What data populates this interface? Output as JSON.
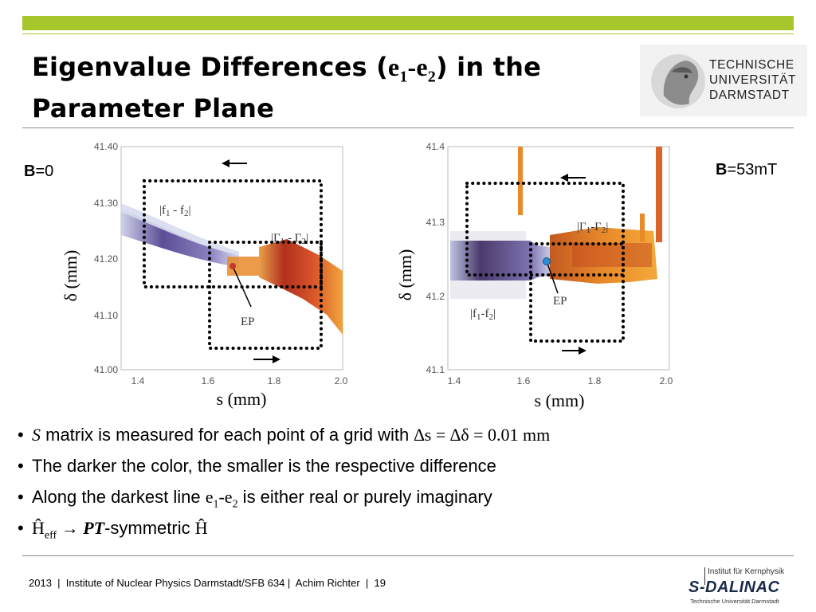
{
  "title": {
    "line1_before": "Eigenvalue Differences (",
    "e1": "e",
    "sub1": "1",
    "dash": "-",
    "e2": "e",
    "sub2": "2",
    "line1_after": ") in the",
    "line2": "Parameter Plane"
  },
  "logo": {
    "line1": "TECHNISCHE",
    "line2": "UNIVERSITÄT",
    "line3": "DARMSTADT"
  },
  "left_plot": {
    "field_bold": "B",
    "field_value": "=0",
    "y_ticks": [
      "41.40",
      "41.30",
      "41.20",
      "41.10",
      "41.00"
    ],
    "x_ticks": [
      "1.4",
      "1.6",
      "1.8",
      "2.0"
    ],
    "xlabel": "s (mm)",
    "ylabel": "δ (mm)",
    "label_f": "|f",
    "label_f_sub1": "1",
    "label_f_mid": " - f",
    "label_f_sub2": "2",
    "label_f_end": "|",
    "label_gamma": "|Γ",
    "label_gamma_sub1": "1",
    "label_gamma_mid": " - Γ",
    "label_gamma_sub2": "2",
    "label_gamma_end": "|",
    "ep": "EP"
  },
  "right_plot": {
    "field_bold": "B",
    "field_value": "=53mT",
    "y_ticks": [
      "41.4",
      "41.3",
      "41.2",
      "41.1"
    ],
    "x_ticks": [
      "1.4",
      "1.6",
      "1.8",
      "2.0"
    ],
    "xlabel": "s (mm)",
    "ylabel": "δ (mm)",
    "label_f": "|f",
    "label_f_sub1": "1",
    "label_f_mid": "-f",
    "label_f_sub2": "2",
    "label_f_end": "|",
    "label_gamma": "|Γ",
    "label_gamma_sub1": "1",
    "label_gamma_mid": "-Γ",
    "label_gamma_sub2": "2",
    "label_gamma_end": "|",
    "ep": "EP"
  },
  "bullets": {
    "b1_s": "S",
    "b1_text": " matrix is measured for each point of a grid with ",
    "b1_math": "∆s = ∆δ = 0.01 mm",
    "b2": "The darker the color, the smaller is the respective difference",
    "b3_before": "Along the darkest line ",
    "b3_e1": "e",
    "b3_sub1": "1",
    "b3_dash": "-e",
    "b3_sub2": "2",
    "b3_after": " is either real or purely imaginary",
    "b4_h": "Ĥ",
    "b4_sub": "eff",
    "b4_arrow": " → ",
    "b4_pt": "PT",
    "b4_text": "-symmetric ",
    "b4_h2": "Ĥ"
  },
  "footer": "2013  |  Institute of Nuclear Physics Darmstadt/SFB 634 |  Achim Richter  |  19",
  "sdalinac": {
    "top": "Institut für Kernphysik",
    "main": "S-DALINAC",
    "bottom": "Technische Universität Darmstadt"
  },
  "colors": {
    "accent_green": "#a7c62b",
    "purple_dark": "#4b3a8c",
    "orange": "#e8892a",
    "red_dark": "#b0301e"
  }
}
